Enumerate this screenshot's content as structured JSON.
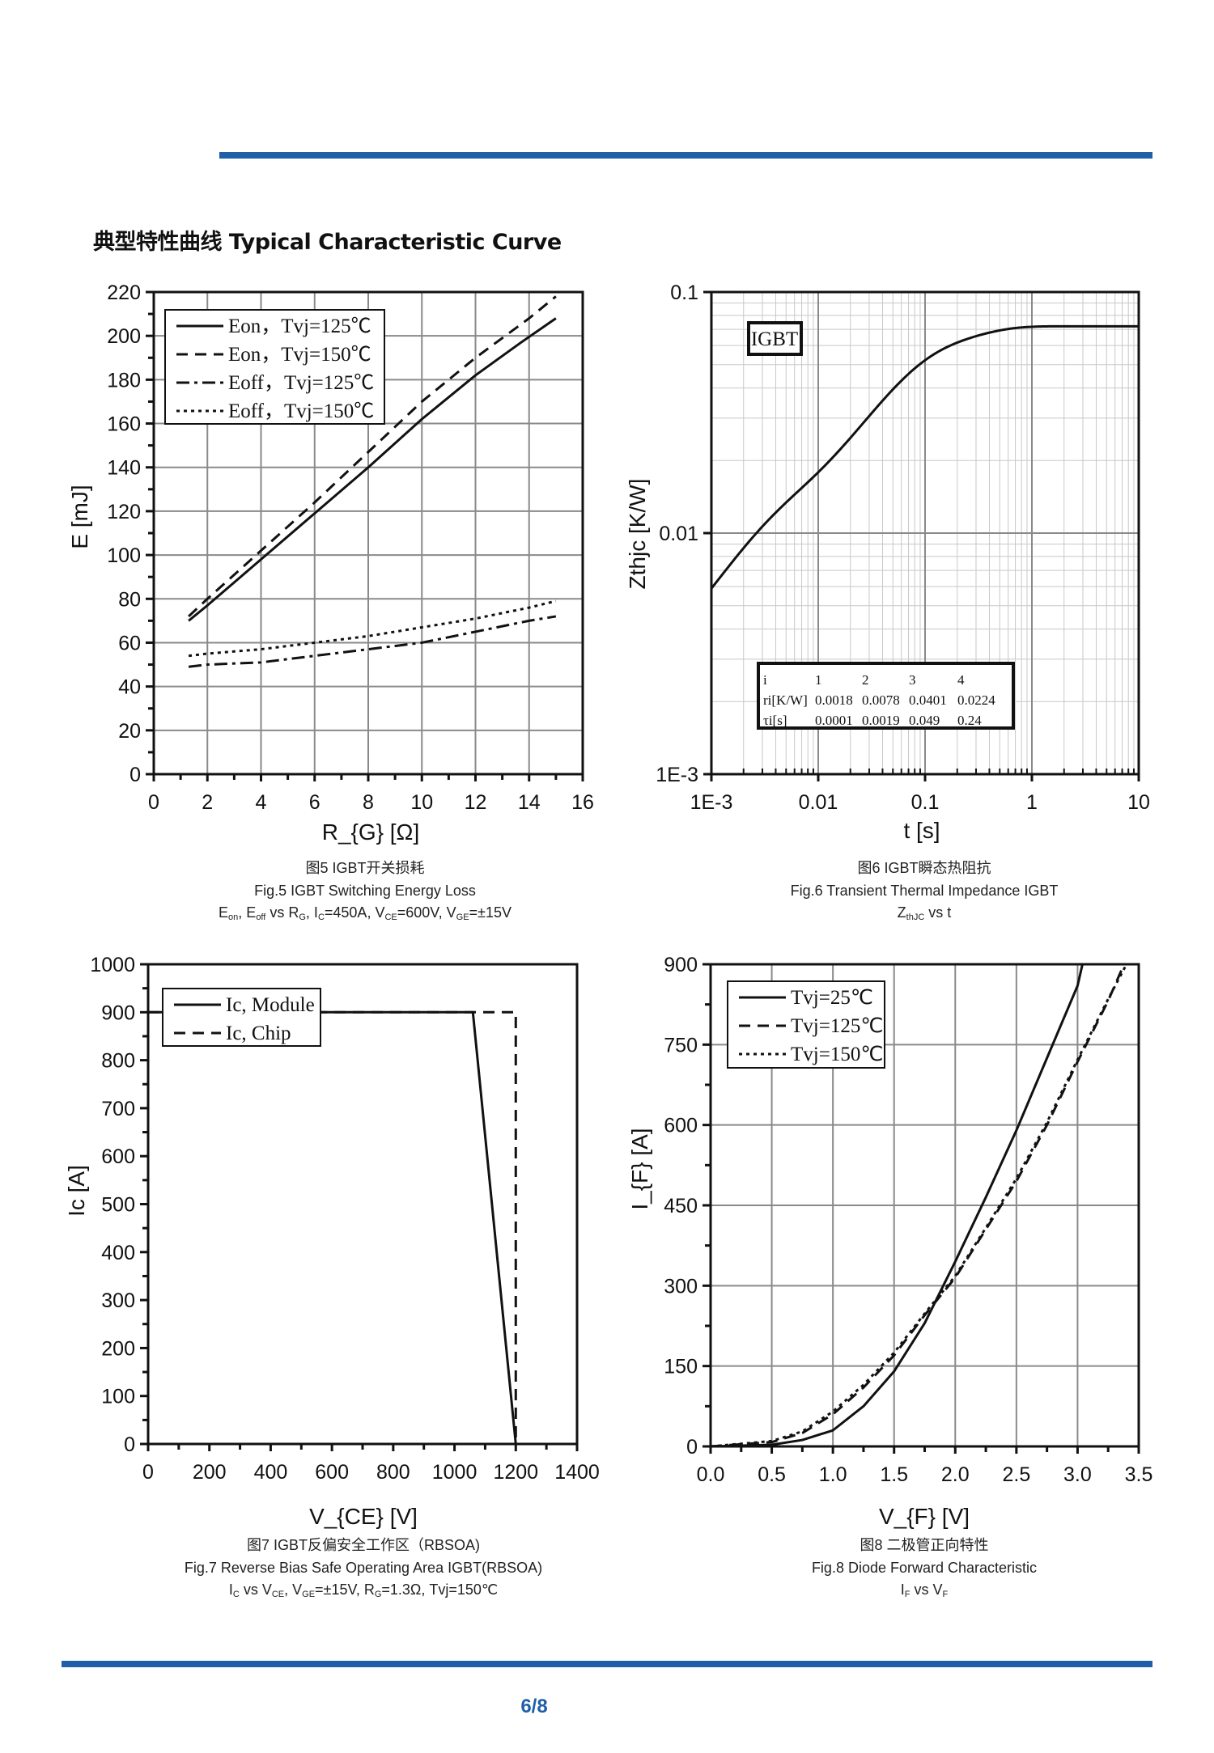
{
  "page": {
    "heading": "典型特性曲线 Typical Characteristic Curve",
    "page_number": "6/8",
    "accent_color": "#1f5fa8"
  },
  "chart_data": [
    {
      "type": "line",
      "caption": [
        "图5 IGBT开关损耗",
        "Fig.5 IGBT Switching Energy Loss",
        "E_{on}, E_{off} vs R_{G}, I_{C}=450A, V_{CE}=600V, V_{GE}=±15V"
      ],
      "xlabel": "R_{G} [Ω]",
      "ylabel": "E [mJ]",
      "xlim": [
        0,
        16
      ],
      "ylim": [
        0,
        220
      ],
      "xscale": "linear",
      "yscale": "linear",
      "xticks": [
        0,
        2,
        4,
        6,
        8,
        10,
        12,
        14,
        16
      ],
      "yticks": [
        0,
        20,
        40,
        60,
        80,
        100,
        120,
        140,
        160,
        180,
        200,
        220
      ],
      "grid": true,
      "legend": "top-left",
      "series": [
        {
          "name": "Eon，Tvj=125℃",
          "style": "solid",
          "x": [
            1.3,
            2,
            4,
            6,
            8,
            10,
            12,
            13.7,
            15
          ],
          "y": [
            70,
            77,
            98,
            119,
            140,
            162,
            182,
            197,
            208
          ]
        },
        {
          "name": "Eon，Tvj=150℃",
          "style": "dash",
          "x": [
            1.3,
            2,
            4,
            6,
            8,
            10,
            12,
            14,
            15
          ],
          "y": [
            72,
            80,
            102,
            124,
            147,
            170,
            190,
            208,
            218
          ]
        },
        {
          "name": "Eoff，Tvj=125℃",
          "style": "dashdot",
          "x": [
            1.3,
            2,
            4,
            6,
            8,
            10,
            12,
            14,
            15
          ],
          "y": [
            49,
            50,
            51,
            54,
            57,
            60,
            65,
            70,
            72
          ]
        },
        {
          "name": "Eoff，Tvj=150℃",
          "style": "dot",
          "x": [
            1.3,
            2,
            4,
            6,
            8,
            10,
            12,
            14,
            15
          ],
          "y": [
            54,
            55,
            57,
            60,
            63,
            67,
            71,
            76,
            79
          ]
        }
      ]
    },
    {
      "type": "line",
      "caption": [
        "图6 IGBT瞬态热阻抗",
        "Fig.6 Transient Thermal Impedance IGBT",
        "Z_{thJC} vs t"
      ],
      "xlabel": "t [s]",
      "ylabel": "Zthjc [K/W]",
      "xlim": [
        0.001,
        10
      ],
      "ylim": [
        0.001,
        0.1
      ],
      "xscale": "log",
      "yscale": "log",
      "xticks": [
        0.001,
        0.01,
        0.1,
        1,
        10
      ],
      "xticklabels": [
        "1E-3",
        "0.01",
        "0.1",
        "1",
        "10"
      ],
      "yticks": [
        0.001,
        0.01,
        0.1
      ],
      "yticklabels": [
        "1E-3",
        "0.01",
        "0.1"
      ],
      "grid": true,
      "label_box": "IGBT",
      "table": {
        "header": [
          "i",
          "1",
          "2",
          "3",
          "4"
        ],
        "rows": [
          [
            "ri[K/W]",
            "0.0018",
            "0.0078",
            "0.0401",
            "0.0224"
          ],
          [
            "τi[s]",
            "0.0001",
            "0.0019",
            "0.049",
            "0.24"
          ]
        ]
      },
      "foster": {
        "r": [
          0.0018,
          0.0078,
          0.0401,
          0.0224
        ],
        "tau": [
          0.0001,
          0.0019,
          0.049,
          0.24
        ]
      },
      "series": [
        {
          "style": "solid",
          "model": "foster"
        }
      ]
    },
    {
      "type": "line",
      "caption": [
        "图7 IGBT反偏安全工作区（RBSOA)",
        "Fig.7  Reverse Bias Safe Operating Area IGBT(RBSOA)",
        "I_{C} vs V_{CE}, V_{GE}=±15V, R_{G}=1.3Ω, Tvj=150℃"
      ],
      "xlabel": "V_{CE} [V]",
      "ylabel": "Ic [A]",
      "xlim": [
        0,
        1400
      ],
      "ylim": [
        0,
        1000
      ],
      "xscale": "linear",
      "yscale": "linear",
      "xticks": [
        0,
        200,
        400,
        600,
        800,
        1000,
        1200,
        1400
      ],
      "yticks": [
        0,
        100,
        200,
        300,
        400,
        500,
        600,
        700,
        800,
        900,
        1000
      ],
      "grid": false,
      "legend": "top-left",
      "series": [
        {
          "name": "Ic, Module",
          "style": "solid",
          "x": [
            0,
            1060,
            1200
          ],
          "y": [
            900,
            900,
            0
          ]
        },
        {
          "name": "Ic, Chip",
          "style": "dash",
          "x": [
            0,
            1200,
            1200
          ],
          "y": [
            900,
            900,
            0
          ]
        }
      ]
    },
    {
      "type": "line",
      "caption": [
        "图8 二极管正向特性",
        "Fig.8 Diode Forward Characteristic",
        "I_{F} vs V_{F}"
      ],
      "xlabel": "V_{F} [V]",
      "ylabel": "I_{F} [A]",
      "xlim": [
        0,
        3.5
      ],
      "ylim": [
        0,
        900
      ],
      "xscale": "linear",
      "yscale": "linear",
      "xticks": [
        0.0,
        0.5,
        1.0,
        1.5,
        2.0,
        2.5,
        3.0,
        3.5
      ],
      "xticklabels": [
        "0.0",
        "0.5",
        "1.0",
        "1.5",
        "2.0",
        "2.5",
        "3.0",
        "3.5"
      ],
      "yticks": [
        0,
        150,
        300,
        450,
        600,
        750,
        900
      ],
      "grid": true,
      "legend": "top-left",
      "series": [
        {
          "name": "Tvj=25℃",
          "style": "solid",
          "x": [
            0,
            0.5,
            0.75,
            1.0,
            1.25,
            1.5,
            1.75,
            2.0,
            2.25,
            2.5,
            2.75,
            3.0,
            3.04
          ],
          "y": [
            0,
            3,
            12,
            30,
            75,
            140,
            230,
            345,
            465,
            590,
            725,
            860,
            900
          ]
        },
        {
          "name": "Tvj=125℃",
          "style": "dash",
          "x": [
            0,
            0.5,
            0.75,
            1.0,
            1.25,
            1.5,
            1.75,
            2.0,
            2.25,
            2.5,
            2.75,
            3.0,
            3.25,
            3.38
          ],
          "y": [
            0,
            8,
            25,
            60,
            110,
            170,
            245,
            315,
            405,
            495,
            600,
            718,
            832,
            900
          ]
        },
        {
          "name": "Tvj=150℃",
          "style": "dot",
          "x": [
            0,
            0.5,
            0.75,
            1.0,
            1.25,
            1.5,
            1.75,
            2.0,
            2.25,
            2.5,
            2.75,
            3.0,
            3.25,
            3.4
          ],
          "y": [
            0,
            10,
            28,
            65,
            115,
            175,
            248,
            318,
            408,
            500,
            605,
            722,
            835,
            900
          ]
        }
      ]
    }
  ]
}
